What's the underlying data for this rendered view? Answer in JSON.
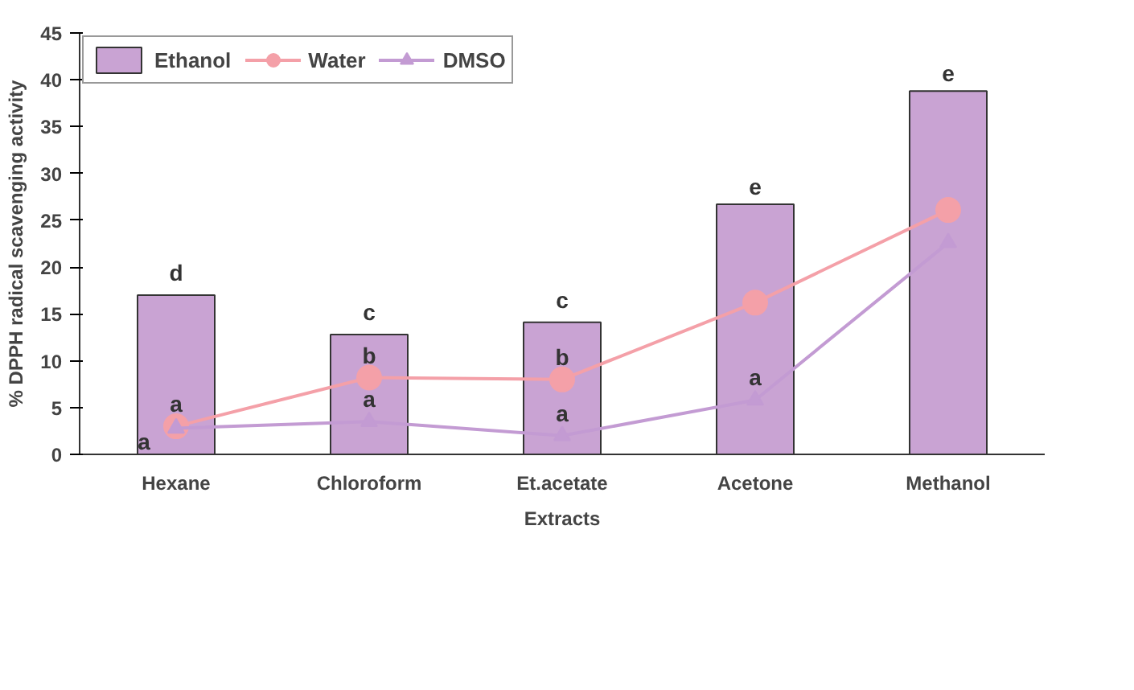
{
  "chart_data": {
    "type": "bar",
    "xlabel": "Extracts",
    "ylabel": "% DPPH radical scavenging activity",
    "categories": [
      "Hexane",
      "Chloroform",
      "Et.acetate",
      "Acetone",
      "Methanol"
    ],
    "series": [
      {
        "name": "Ethanol",
        "color": "#c9a3d3",
        "values": [
          17.0,
          12.8,
          14.1,
          26.7,
          38.8
        ]
      },
      {
        "name": "Water",
        "type": "line",
        "marker": "circle",
        "color": "#f4a0a8",
        "values": [
          3.0,
          8.2,
          8.0,
          16.2,
          26.1
        ]
      },
      {
        "name": "DMSO",
        "type": "line",
        "marker": "triangle",
        "color": "#c39bd3",
        "values": [
          2.8,
          3.5,
          2.0,
          5.8,
          22.6
        ]
      }
    ],
    "ylim": [
      0,
      45
    ],
    "yticks": [
      0,
      5,
      10,
      15,
      20,
      25,
      30,
      35,
      40,
      45
    ],
    "grid": false,
    "legend": "top left",
    "annotations": [
      {
        "text": "d",
        "x": "Hexane",
        "y": 17.0
      },
      {
        "text": "c",
        "x": "Chloroform",
        "y": 12.8
      },
      {
        "text": "c",
        "x": "Et.acetate",
        "y": 14.1
      },
      {
        "text": "e",
        "x": "Acetone",
        "y": 26.7
      },
      {
        "text": "e",
        "x": "Methanol",
        "y": 38.8
      },
      {
        "text": "a",
        "x": "Hexane",
        "y": 3.0
      },
      {
        "text": "b",
        "x": "Chloroform",
        "y": 8.2
      },
      {
        "text": "b",
        "x": "Et.acetate",
        "y": 8.0
      },
      {
        "text": "a",
        "x": "Hexane",
        "y": 0
      },
      {
        "text": "a",
        "x": "Chloroform",
        "y": 3.5
      },
      {
        "text": "a",
        "x": "Et.acetate",
        "y": 2.0
      },
      {
        "text": "a",
        "x": "Acetone",
        "y": 5.8
      }
    ]
  }
}
